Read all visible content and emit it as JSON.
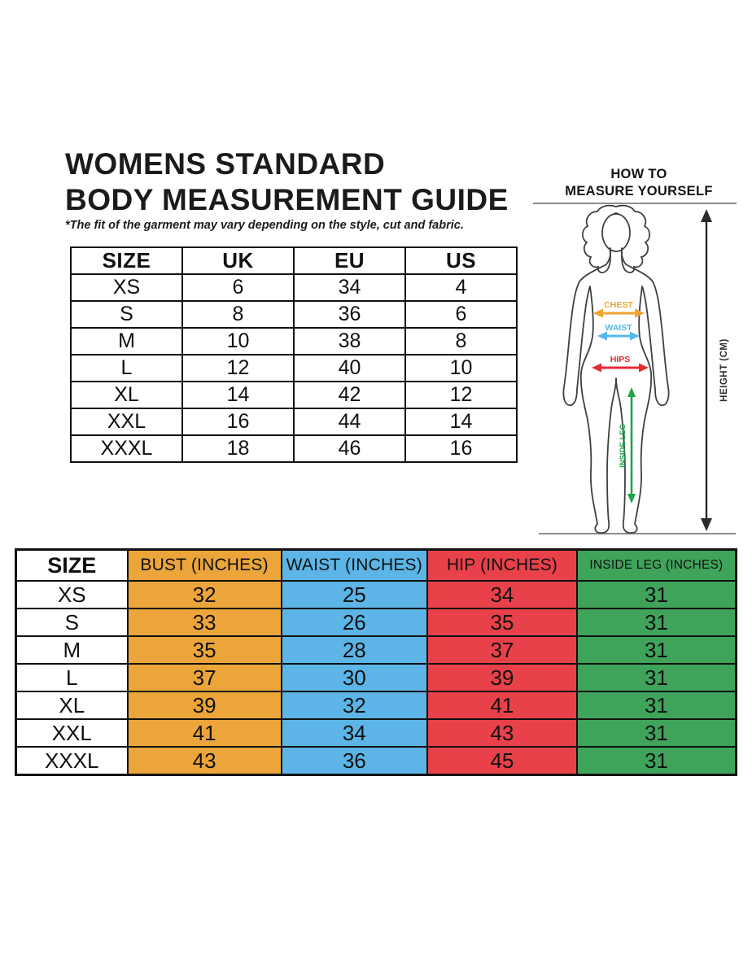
{
  "page": {
    "title_line1": "WOMENS STANDARD",
    "title_line2": "BODY MEASUREMENT GUIDE",
    "disclaimer": "*The fit of the garment may vary depending on the style, cut and fabric."
  },
  "size_conversion_table": {
    "headers": [
      "SIZE",
      "UK",
      "EU",
      "US"
    ],
    "rows": [
      [
        "XS",
        "6",
        "34",
        "4"
      ],
      [
        "S",
        "8",
        "36",
        "6"
      ],
      [
        "M",
        "10",
        "38",
        "8"
      ],
      [
        "L",
        "12",
        "40",
        "10"
      ],
      [
        "XL",
        "14",
        "42",
        "12"
      ],
      [
        "XXL",
        "16",
        "44",
        "14"
      ],
      [
        "XXXL",
        "18",
        "46",
        "16"
      ]
    ]
  },
  "measure_diagram": {
    "title_line1": "HOW TO",
    "title_line2": "MEASURE YOURSELF",
    "labels": {
      "chest": "CHEST",
      "waist": "WAIST",
      "hips": "HIPS",
      "inside_leg": "INSIDE LEG",
      "height": "HEIGHT (CM)"
    },
    "colors": {
      "chest": "#F0A232",
      "waist": "#54B7E9",
      "hips": "#E52B34",
      "inside_leg": "#1FA34C",
      "height": "#2B2B2B",
      "body_outline": "#3F3F3F",
      "guide_line": "#8C8C8C"
    }
  },
  "measurement_table": {
    "headers": [
      "SIZE",
      "BUST (INCHES)",
      "WAIST (INCHES)",
      "HIP (INCHES)",
      "INSIDE LEG (INCHES)"
    ],
    "column_colors": [
      "#FFFFFF",
      "#EBA53A",
      "#5CB5E6",
      "#E8414A",
      "#3FA45A"
    ],
    "rows": [
      [
        "XS",
        "32",
        "25",
        "34",
        "31"
      ],
      [
        "S",
        "33",
        "26",
        "35",
        "31"
      ],
      [
        "M",
        "35",
        "28",
        "37",
        "31"
      ],
      [
        "L",
        "37",
        "30",
        "39",
        "31"
      ],
      [
        "XL",
        "39",
        "32",
        "41",
        "31"
      ],
      [
        "XXL",
        "41",
        "34",
        "43",
        "31"
      ],
      [
        "XXXL",
        "43",
        "36",
        "45",
        "31"
      ]
    ]
  }
}
